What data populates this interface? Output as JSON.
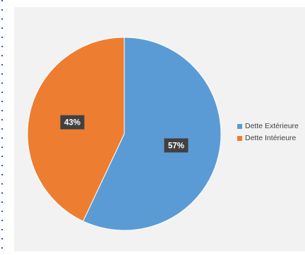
{
  "chart_data": {
    "type": "pie",
    "title": "",
    "start_angle_deg": 0,
    "direction": "clockwise",
    "slices": [
      {
        "label": "Dette Extérieure",
        "value": 57,
        "data_label": "57%",
        "color": "#5b9bd5"
      },
      {
        "label": "Dette Intérieure",
        "value": 43,
        "data_label": "43%",
        "color": "#ed7d31"
      }
    ],
    "legend": {
      "position": "right",
      "items": [
        "Dette Extérieure",
        "Dette Intérieure"
      ]
    },
    "data_label_style": {
      "background": "#404040",
      "text_color": "#ffffff"
    }
  }
}
